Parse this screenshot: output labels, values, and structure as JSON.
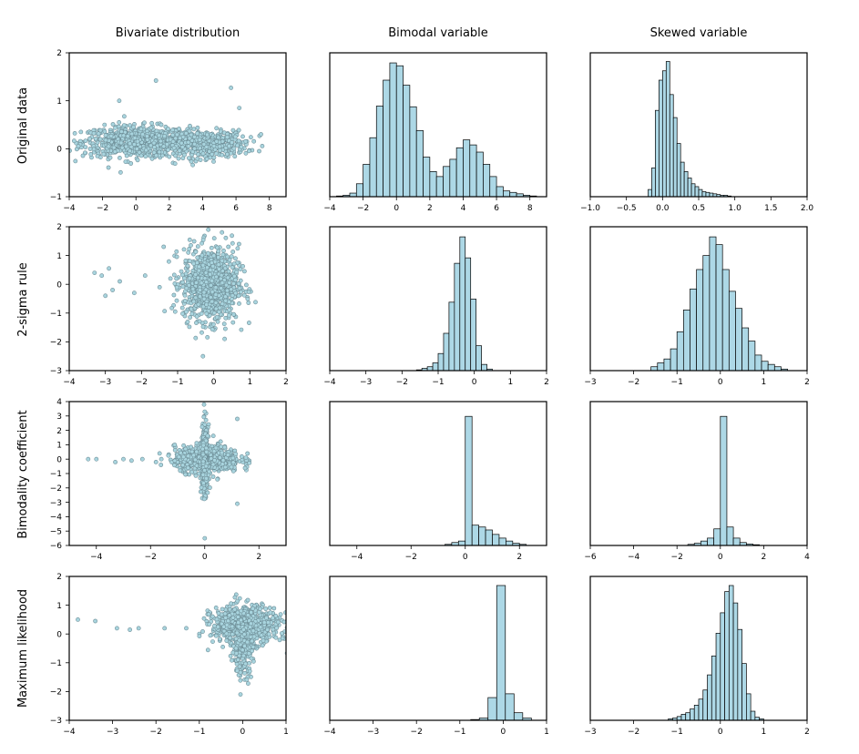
{
  "chart_data": {
    "type": "scatter-histogram-grid",
    "column_titles": [
      "Bivariate distribution",
      "Bimodal variable",
      "Skewed variable"
    ],
    "row_labels": [
      "Original data",
      "2-sigma rule",
      "Bimodality coefficient",
      "Maximum likelihood"
    ],
    "marker_color": "#a8d4de",
    "bar_color": "#add8e6",
    "panels": [
      [
        {
          "type": "scatter",
          "xlim": [
            -4,
            9
          ],
          "ylim": [
            -1,
            2
          ],
          "xticks": [
            -4,
            -2,
            0,
            2,
            4,
            6,
            8
          ],
          "yticks": [
            -1,
            0,
            1,
            2
          ],
          "clusters": [
            {
              "cx": 0,
              "cy": 0.15,
              "sx": 1.6,
              "sy": 0.16,
              "n": 750
            },
            {
              "cx": 4,
              "cy": 0.1,
              "sx": 1.3,
              "sy": 0.14,
              "n": 450
            }
          ],
          "outliers": [
            [
              1.2,
              1.42
            ],
            [
              5.7,
              1.27
            ],
            [
              -1.0,
              1.0
            ],
            [
              7.5,
              0.3
            ],
            [
              6.2,
              0.85
            ]
          ]
        },
        {
          "type": "hist",
          "xlim": [
            -4,
            9
          ],
          "ylim": [
            0,
            2
          ],
          "xticks": [
            -4,
            -2,
            0,
            2,
            4,
            6,
            8
          ],
          "yticks": [],
          "bin_start": -3.6,
          "bin_width": 0.4,
          "values": [
            0.01,
            0.02,
            0.05,
            0.18,
            0.45,
            0.82,
            1.26,
            1.62,
            1.86,
            1.82,
            1.55,
            1.25,
            0.92,
            0.55,
            0.35,
            0.28,
            0.42,
            0.52,
            0.68,
            0.79,
            0.72,
            0.62,
            0.45,
            0.28,
            0.14,
            0.08,
            0.06,
            0.04,
            0.02,
            0.01
          ]
        },
        {
          "type": "hist",
          "xlim": [
            -1,
            2
          ],
          "ylim": [
            0,
            2
          ],
          "xticks": [
            -1.0,
            -0.5,
            0.0,
            0.5,
            1.0,
            1.5,
            2.0
          ],
          "yticks": [],
          "bin_start": -0.2,
          "bin_width": 0.05,
          "values": [
            0.1,
            0.4,
            1.2,
            1.62,
            1.75,
            1.88,
            1.42,
            1.1,
            0.74,
            0.48,
            0.35,
            0.26,
            0.18,
            0.14,
            0.1,
            0.07,
            0.06,
            0.05,
            0.04,
            0.03,
            0.02,
            0.02,
            0.01
          ]
        }
      ],
      [
        {
          "type": "scatter",
          "xlim": [
            -4,
            2
          ],
          "ylim": [
            -3,
            2
          ],
          "xticks": [
            -4,
            -3,
            -2,
            -1,
            0,
            1,
            2
          ],
          "yticks": [
            -3,
            -2,
            -1,
            0,
            1,
            2
          ],
          "clusters": [
            {
              "cx": -0.1,
              "cy": 0.0,
              "sx": 0.38,
              "sy": 0.62,
              "n": 1000
            }
          ],
          "outliers": [
            [
              -3.3,
              0.4
            ],
            [
              -3.1,
              0.3
            ],
            [
              -2.9,
              0.55
            ],
            [
              -2.8,
              -0.2
            ],
            [
              -3.0,
              -0.4
            ],
            [
              -2.6,
              0.1
            ],
            [
              -2.2,
              -0.3
            ],
            [
              -1.9,
              0.3
            ],
            [
              -1.5,
              -0.1
            ],
            [
              -1.2,
              0.2
            ],
            [
              -0.3,
              -2.5
            ],
            [
              -0.15,
              1.9
            ],
            [
              0.7,
              1.4
            ],
            [
              0.3,
              -1.9
            ]
          ]
        },
        {
          "type": "hist",
          "xlim": [
            -4,
            2
          ],
          "ylim": [
            0,
            1.85
          ],
          "xticks": [
            -4,
            -3,
            -2,
            -1,
            0,
            1,
            2
          ],
          "yticks": [],
          "bin_start": -1.6,
          "bin_width": 0.15,
          "values": [
            0.01,
            0.03,
            0.05,
            0.1,
            0.22,
            0.48,
            0.88,
            1.38,
            1.72,
            1.45,
            0.92,
            0.32,
            0.08,
            0.02
          ]
        },
        {
          "type": "hist",
          "xlim": [
            -3,
            2
          ],
          "ylim": [
            0,
            1.85
          ],
          "xticks": [
            -3,
            -2,
            -1,
            0,
            1,
            2
          ],
          "yticks": [],
          "bin_start": -1.6,
          "bin_width": 0.15,
          "values": [
            0.05,
            0.1,
            0.15,
            0.28,
            0.5,
            0.78,
            1.05,
            1.3,
            1.48,
            1.72,
            1.62,
            1.3,
            1.02,
            0.8,
            0.55,
            0.38,
            0.2,
            0.12,
            0.08,
            0.05,
            0.02
          ]
        }
      ],
      [
        {
          "type": "scatter",
          "xlim": [
            -5,
            3
          ],
          "ylim": [
            -6,
            4
          ],
          "xticks": [
            -4,
            -2,
            0,
            2
          ],
          "yticks": [
            -6,
            -5,
            -4,
            -3,
            -2,
            -1,
            0,
            1,
            2,
            3,
            4
          ],
          "clusters": [
            {
              "cx": 0.1,
              "cy": 0.0,
              "sx": 0.6,
              "sy": 0.45,
              "n": 650
            },
            {
              "cx": 0.0,
              "cy": 0.0,
              "sx": 0.06,
              "sy": 1.15,
              "n": 350
            }
          ],
          "outliers": [
            [
              -4.3,
              0.0
            ],
            [
              -4.0,
              0.0
            ],
            [
              -3.3,
              -0.2
            ],
            [
              -3.0,
              0.0
            ],
            [
              -2.7,
              -0.1
            ],
            [
              -2.3,
              0.0
            ],
            [
              -1.8,
              -0.2
            ],
            [
              -1.6,
              0.0
            ],
            [
              0.0,
              -5.5
            ],
            [
              1.2,
              2.8
            ],
            [
              1.2,
              -3.1
            ],
            [
              0.0,
              3.3
            ]
          ]
        },
        {
          "type": "hist",
          "xlim": [
            -5,
            3
          ],
          "ylim": [
            0,
            3.9
          ],
          "xticks": [
            -4,
            -2,
            0,
            2
          ],
          "yticks": [],
          "bin_start": -0.75,
          "bin_width": 0.25,
          "values": [
            0.03,
            0.08,
            0.12,
            3.5,
            0.55,
            0.5,
            0.42,
            0.3,
            0.2,
            0.12,
            0.06,
            0.03
          ]
        },
        {
          "type": "hist",
          "xlim": [
            -6,
            4
          ],
          "ylim": [
            0,
            3.9
          ],
          "xticks": [
            -6,
            -4,
            -2,
            0,
            2,
            4
          ],
          "yticks": [],
          "bin_start": -1.5,
          "bin_width": 0.3,
          "values": [
            0.03,
            0.06,
            0.12,
            0.2,
            0.45,
            3.5,
            0.5,
            0.2,
            0.08,
            0.04,
            0.02
          ]
        }
      ],
      [
        {
          "type": "scatter",
          "xlim": [
            -4,
            1
          ],
          "ylim": [
            -3,
            2
          ],
          "xticks": [
            -4,
            -3,
            -2,
            -1,
            0,
            1
          ],
          "yticks": [
            -3,
            -2,
            -1,
            0,
            1,
            2
          ],
          "clusters": [
            {
              "cx": 0.05,
              "cy": 0.3,
              "sx": 0.38,
              "sy": 0.32,
              "n": 700
            },
            {
              "cx": 0.0,
              "cy": -0.3,
              "sx": 0.12,
              "sy": 0.55,
              "n": 300
            }
          ],
          "outliers": [
            [
              -3.8,
              0.5
            ],
            [
              -3.4,
              0.45
            ],
            [
              -2.9,
              0.2
            ],
            [
              -2.6,
              0.15
            ],
            [
              -2.4,
              0.2
            ],
            [
              -1.8,
              0.2
            ],
            [
              -1.3,
              0.2
            ],
            [
              -0.05,
              -2.1
            ],
            [
              0.5,
              0.4
            ]
          ]
        },
        {
          "type": "hist",
          "xlim": [
            -4,
            1
          ],
          "ylim": [
            0,
            1.9
          ],
          "xticks": [
            -4,
            -3,
            -2,
            -1,
            0,
            1
          ],
          "yticks": [],
          "bin_start": -0.75,
          "bin_width": 0.2,
          "values": [
            0.01,
            0.03,
            0.3,
            1.78,
            0.35,
            0.1,
            0.03
          ]
        },
        {
          "type": "hist",
          "xlim": [
            -3,
            2
          ],
          "ylim": [
            0,
            1.9
          ],
          "xticks": [
            -3,
            -2,
            -1,
            0,
            1,
            2
          ],
          "yticks": [],
          "bin_start": -1.2,
          "bin_width": 0.1,
          "values": [
            0.02,
            0.03,
            0.05,
            0.08,
            0.1,
            0.15,
            0.2,
            0.28,
            0.4,
            0.6,
            0.85,
            1.15,
            1.42,
            1.7,
            1.78,
            1.55,
            1.2,
            0.75,
            0.35,
            0.12,
            0.04,
            0.02
          ]
        }
      ]
    ]
  }
}
